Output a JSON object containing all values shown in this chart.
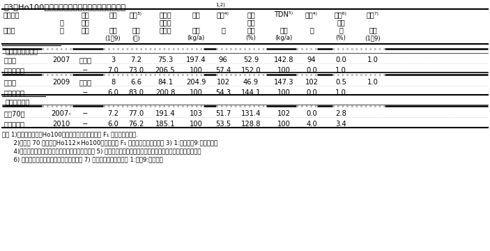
{
  "title": "表3「Ho100」を片親とする単交雑一代雑種の特性",
  "title_sup": "1,2)",
  "section1": "組合せ能力検定",
  "section2": "生産力検定",
  "col_headers": {
    "row1": [
      "単交雑・",
      "",
      "交配",
      "組合",
      "初期³⧉",
      "絹糸抚",
      "乾物",
      "同左⁴⧉",
      "乾雌",
      "TDN⁵⧉",
      "同左⁴⧉",
      "倒伏⁶⧉",
      "すす⁷⧉"
    ],
    "row2": [
      "",
      "年",
      "相手",
      "",
      "",
      "出期ま",
      "",
      "",
      "穂重",
      "",
      "",
      "個体",
      ""
    ],
    "row3": [
      "品種名",
      "次",
      "系列",
      "せ数",
      "生育",
      "で日数",
      "総重",
      "比",
      "割合",
      "収量",
      "比",
      "率",
      "紋病"
    ],
    "row4": [
      "",
      "",
      "",
      "(1−9)",
      "(日)",
      "(kg/a)",
      "",
      "(%)",
      "(kg/a)",
      "",
      "(%)",
      "(1−9)"
    ]
  },
  "data_sec1": [
    [
      "単交雑",
      "2007",
      "デント",
      "3",
      "7.2",
      "75.3",
      "197.4",
      "96",
      "52.9",
      "142.8",
      "94",
      "0.0",
      "1.0"
    ],
    [
      "ブリザック",
      "",
      "−",
      "7.0",
      "73.0",
      "206.5",
      "100",
      "57.4",
      "152.0",
      "100",
      "0.0",
      "1.0"
    ],
    [
      "単交雑",
      "2009",
      "デント",
      "8",
      "6.6",
      "84.1",
      "204.9",
      "102",
      "46.9",
      "147.3",
      "102",
      "0.5",
      "1.0"
    ],
    [
      "ブリザック",
      "",
      "−",
      "6.0",
      "83.0",
      "200.8",
      "100",
      "54.3",
      "144.1",
      "100",
      "0.0",
      "1.0"
    ]
  ],
  "data_sec2": [
    [
      "北产70号",
      "2007-",
      "−",
      "7.2",
      "77.0",
      "191.4",
      "103",
      "51.7",
      "131.4",
      "102",
      "0.0",
      "2.8"
    ],
    [
      "ブリザック",
      "2010",
      "−",
      "6.0",
      "76.2",
      "185.1",
      "100",
      "53.5",
      "128.8",
      "100",
      "4.0",
      "3.4"
    ]
  ],
  "footnotes": [
    "注　 1)「単交雑」は「Ho100」を片親に用いた単交雑 F₁ 組合せの平均値.",
    "      2)「北交 70 号」は「Ho112×Ho100」の単交雑 F₁ 組合せ　　　　　　　 3) 1:極不良～9:極良の評点",
    "      4)「ブリザック」に対する百分比　　　　　　　 5) 近赤外分析による茎葉の分析値と部位別の乾物収量から算出",
    "      6) 倒伏と折損の合計　　　　　　　　　 7) 接種検定試験のデータ 1:無～9:茄の評点"
  ],
  "bg_color": "#ffffff"
}
